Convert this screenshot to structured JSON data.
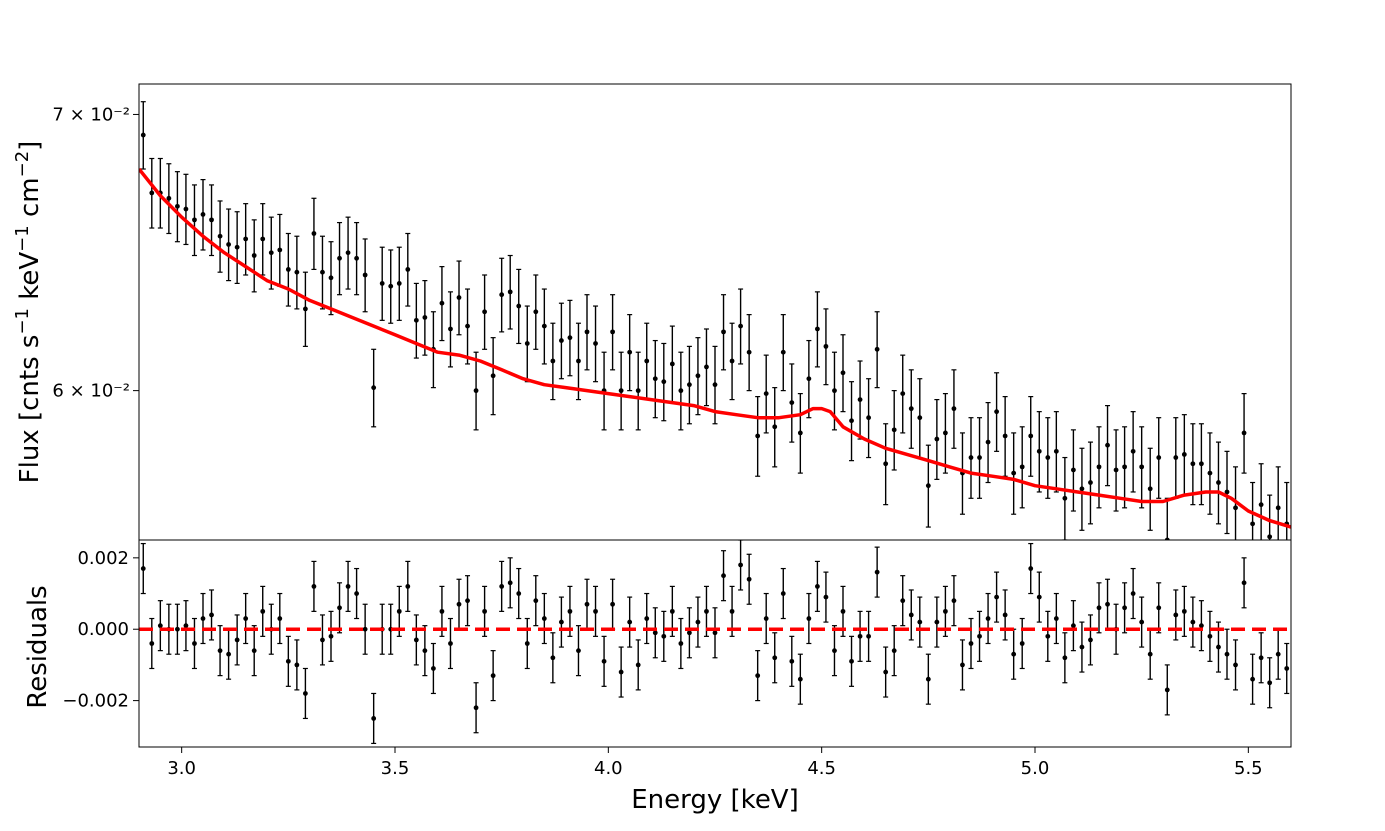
{
  "chart_data": {
    "type": "scatter",
    "colors": {
      "data": "#000000",
      "model": "#ff0000",
      "residual_zero": "#ff0000"
    },
    "top_panel": {
      "ylabel_html": "Flux [cnts s<tspan baseline-shift=\"super\" font-size=\"18\">−1</tspan> keV<tspan baseline-shift=\"super\" font-size=\"18\">−1</tspan> cm<tspan baseline-shift=\"super\" font-size=\"18\">−2</tspan>]",
      "yscale": "log",
      "xlim": [
        2.9,
        5.6
      ],
      "ylim": [
        0.0552,
        0.0712
      ],
      "ytick_values": [
        0.06,
        0.07
      ],
      "ytick_labels": [
        "6 × 10⁻²",
        "7 × 10⁻²"
      ],
      "series": [
        {
          "name": "data",
          "x": [
            2.91,
            2.93,
            2.95,
            2.97,
            2.99,
            3.01,
            3.03,
            3.05,
            3.07,
            3.09,
            3.11,
            3.13,
            3.15,
            3.17,
            3.19,
            3.21,
            3.23,
            3.25,
            3.27,
            3.29,
            3.31,
            3.33,
            3.35,
            3.37,
            3.39,
            3.41,
            3.43,
            3.45,
            3.47,
            3.49,
            3.51,
            3.53,
            3.55,
            3.57,
            3.59,
            3.61,
            3.63,
            3.65,
            3.67,
            3.69,
            3.71,
            3.73,
            3.75,
            3.77,
            3.79,
            3.81,
            3.83,
            3.85,
            3.87,
            3.89,
            3.91,
            3.93,
            3.95,
            3.97,
            3.99,
            4.01,
            4.03,
            4.05,
            4.07,
            4.09,
            4.11,
            4.13,
            4.15,
            4.17,
            4.19,
            4.21,
            4.23,
            4.25,
            4.27,
            4.29,
            4.31,
            4.33,
            4.35,
            4.37,
            4.39,
            4.41,
            4.43,
            4.45,
            4.47,
            4.49,
            4.51,
            4.53,
            4.55,
            4.57,
            4.59,
            4.61,
            4.63,
            4.65,
            4.67,
            4.69,
            4.71,
            4.73,
            4.75,
            4.77,
            4.79,
            4.81,
            4.83,
            4.85,
            4.87,
            4.89,
            4.91,
            4.93,
            4.95,
            4.97,
            4.99,
            5.01,
            5.03,
            5.05,
            5.07,
            5.09,
            5.11,
            5.13,
            5.15,
            5.17,
            5.19,
            5.21,
            5.23,
            5.25,
            5.27,
            5.29,
            5.31,
            5.33,
            5.35,
            5.37,
            5.39,
            5.41,
            5.43,
            5.45,
            5.47,
            5.49,
            5.51,
            5.53,
            5.55,
            5.57,
            5.59
          ],
          "y": [
            0.0692,
            0.067,
            0.067,
            0.0668,
            0.0665,
            0.0664,
            0.066,
            0.0662,
            0.066,
            0.0654,
            0.0651,
            0.065,
            0.0653,
            0.0647,
            0.0653,
            0.0648,
            0.0649,
            0.0642,
            0.0641,
            0.0628,
            0.0655,
            0.0641,
            0.0639,
            0.0646,
            0.0648,
            0.0646,
            0.064,
            0.0601,
            0.0637,
            0.0636,
            0.0637,
            0.0642,
            0.0624,
            0.0625,
            0.0614,
            0.063,
            0.0621,
            0.0632,
            0.0622,
            0.06,
            0.0627,
            0.0605,
            0.0633,
            0.0634,
            0.0629,
            0.0616,
            0.0627,
            0.0622,
            0.061,
            0.0617,
            0.0618,
            0.061,
            0.062,
            0.0616,
            0.06,
            0.062,
            0.06,
            0.0613,
            0.06,
            0.061,
            0.0604,
            0.0603,
            0.0609,
            0.06,
            0.0602,
            0.0605,
            0.0608,
            0.0602,
            0.062,
            0.061,
            0.0622,
            0.0613,
            0.0585,
            0.0599,
            0.0588,
            0.0613,
            0.0596,
            0.0586,
            0.0604,
            0.0621,
            0.0615,
            0.06,
            0.0606,
            0.059,
            0.0597,
            0.0591,
            0.0614,
            0.0576,
            0.0587,
            0.0599,
            0.0594,
            0.0591,
            0.0569,
            0.0584,
            0.0586,
            0.0594,
            0.0573,
            0.0578,
            0.0578,
            0.0583,
            0.0593,
            0.0585,
            0.0573,
            0.0575,
            0.0585,
            0.058,
            0.0578,
            0.058,
            0.0565,
            0.0574,
            0.0568,
            0.057,
            0.0575,
            0.0582,
            0.0574,
            0.0575,
            0.058,
            0.0575,
            0.0568,
            0.0578,
            0.0552,
            0.0578,
            0.0579,
            0.0576,
            0.0576,
            0.0573,
            0.057,
            0.0567,
            0.0562,
            0.0586,
            0.0557,
            0.0563,
            0.0553,
            0.0562,
            0.0557
          ],
          "yerr": 0.0013
        },
        {
          "name": "model",
          "x": [
            2.9,
            2.95,
            3.0,
            3.05,
            3.1,
            3.15,
            3.2,
            3.25,
            3.3,
            3.35,
            3.4,
            3.45,
            3.5,
            3.55,
            3.6,
            3.65,
            3.7,
            3.75,
            3.8,
            3.85,
            3.9,
            3.95,
            4.0,
            4.05,
            4.1,
            4.15,
            4.2,
            4.25,
            4.3,
            4.35,
            4.4,
            4.45,
            4.48,
            4.5,
            4.52,
            4.55,
            4.6,
            4.65,
            4.7,
            4.75,
            4.8,
            4.85,
            4.9,
            4.95,
            5.0,
            5.05,
            5.1,
            5.15,
            5.2,
            5.25,
            5.3,
            5.35,
            5.4,
            5.43,
            5.46,
            5.5,
            5.55,
            5.6
          ],
          "y": [
            0.0679,
            0.0669,
            0.0661,
            0.0654,
            0.0648,
            0.0643,
            0.0638,
            0.0635,
            0.0631,
            0.0628,
            0.0625,
            0.0622,
            0.0619,
            0.0616,
            0.0613,
            0.0612,
            0.061,
            0.0607,
            0.0604,
            0.0602,
            0.0601,
            0.06,
            0.0599,
            0.0598,
            0.0597,
            0.0596,
            0.0595,
            0.0593,
            0.0592,
            0.0591,
            0.0591,
            0.0592,
            0.0594,
            0.0594,
            0.0593,
            0.0588,
            0.0584,
            0.0581,
            0.0579,
            0.0577,
            0.0575,
            0.0573,
            0.0572,
            0.0571,
            0.0569,
            0.0568,
            0.0567,
            0.0566,
            0.0565,
            0.0564,
            0.0564,
            0.0566,
            0.0567,
            0.0567,
            0.0565,
            0.0561,
            0.0558,
            0.0556
          ]
        }
      ]
    },
    "bottom_panel": {
      "xlabel": "Energy [keV]",
      "ylabel": "Residuals",
      "xlim": [
        2.9,
        5.6
      ],
      "ylim": [
        -0.0033,
        0.0025
      ],
      "ytick_values": [
        -0.002,
        0.0,
        0.002
      ],
      "ytick_labels": [
        "−0.002",
        "0.000",
        "0.002"
      ],
      "xtick_values": [
        3.0,
        3.5,
        4.0,
        4.5,
        5.0,
        5.5
      ],
      "xtick_labels": [
        "3.0",
        "3.5",
        "4.0",
        "4.5",
        "5.0",
        "5.5"
      ],
      "zero_line": 0.0,
      "residuals": [
        0.0017,
        -0.0004,
        0.0001,
        0.0,
        0.0,
        0.0001,
        -0.0004,
        0.0003,
        0.0004,
        -0.0006,
        -0.0007,
        -0.0003,
        0.0003,
        -0.0006,
        0.0005,
        0.0,
        0.0003,
        -0.0009,
        -0.001,
        -0.0018,
        0.0012,
        -0.0003,
        -0.0002,
        0.0006,
        0.0012,
        0.001,
        0.0,
        -0.0025,
        0.0,
        0.0,
        0.0005,
        0.0012,
        -0.0003,
        -0.0006,
        -0.0011,
        0.0005,
        -0.0004,
        0.0007,
        0.0008,
        -0.0022,
        0.0005,
        -0.0013,
        0.0012,
        0.0013,
        0.001,
        -0.0004,
        0.0008,
        0.0003,
        -0.0008,
        0.0002,
        0.0005,
        -0.0006,
        0.0007,
        0.0005,
        -0.0009,
        0.0007,
        -0.0012,
        0.0002,
        -0.001,
        0.0003,
        -0.0001,
        -0.0002,
        0.0005,
        -0.0004,
        -0.0001,
        0.0002,
        0.0005,
        -0.0001,
        0.0015,
        0.0005,
        0.0018,
        0.0014,
        -0.0013,
        0.0003,
        -0.0008,
        0.001,
        -0.0009,
        -0.0014,
        0.0003,
        0.0012,
        0.0009,
        -0.0006,
        0.0005,
        -0.0009,
        -0.0002,
        -0.0002,
        0.0016,
        -0.0012,
        -0.0006,
        0.0008,
        0.0004,
        0.0002,
        -0.0014,
        0.0002,
        0.0005,
        0.0008,
        -0.001,
        -0.0004,
        -0.0002,
        0.0003,
        0.0009,
        0.0004,
        -0.0007,
        -0.0004,
        0.0017,
        0.0009,
        -0.0002,
        0.0003,
        -0.0008,
        0.0001,
        -0.0005,
        -0.0003,
        0.0006,
        0.0007,
        0.0,
        0.0006,
        0.001,
        0.0002,
        -0.0007,
        0.0006,
        -0.0017,
        0.0004,
        0.0005,
        0.0002,
        0.0001,
        -0.0002,
        -0.0005,
        -0.0007,
        -0.001,
        0.0013,
        -0.0014,
        -0.0008,
        -0.0015,
        -0.0007,
        -0.0011
      ],
      "residual_err": 0.0007
    }
  }
}
